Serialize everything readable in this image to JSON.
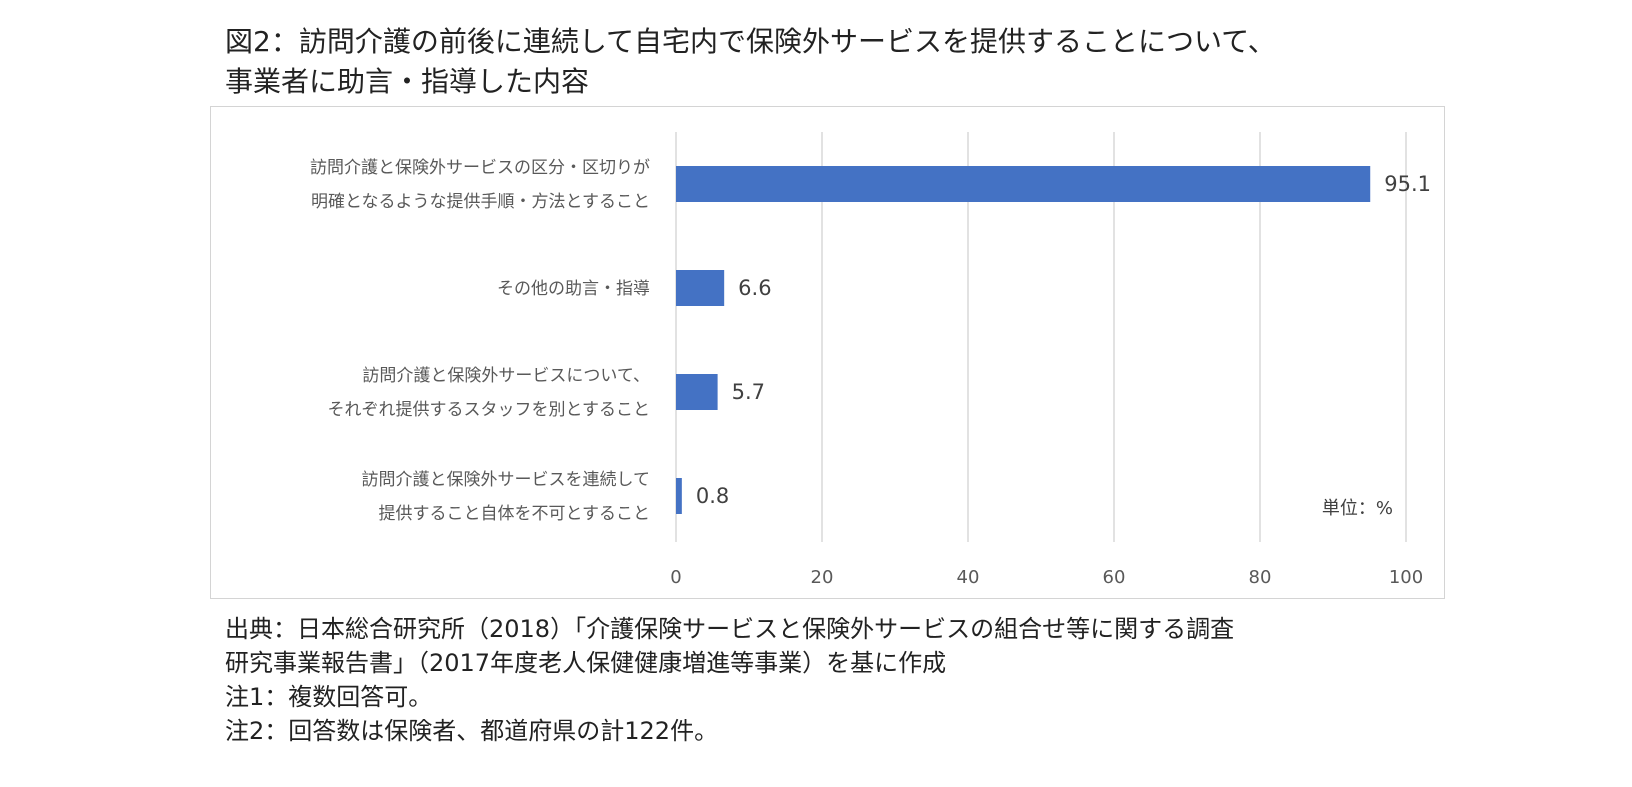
{
  "title": {
    "line1": "図2：訪問介護の前後に連続して自宅内で保険外サービスを提供することについて、",
    "line2": "事業者に助言・指導した内容"
  },
  "chart_data": {
    "type": "bar",
    "orientation": "horizontal",
    "categories": [
      [
        "訪問介護と保険外サービスの区分・区切りが",
        "明確となるような提供手順・方法とすること"
      ],
      [
        "その他の助言・指導"
      ],
      [
        "訪問介護と保険外サービスについて、",
        "それぞれ提供するスタッフを別とすること"
      ],
      [
        "訪問介護と保険外サービスを連続して",
        "提供すること自体を不可とすること"
      ]
    ],
    "values": [
      95.1,
      6.6,
      5.7,
      0.8
    ],
    "value_labels": [
      "95.1",
      "6.6",
      "5.7",
      "0.8"
    ],
    "xlim": [
      0,
      100
    ],
    "xticks": [
      0,
      20,
      40,
      60,
      80,
      100
    ],
    "unit_label": "単位：%",
    "grid": "vertical",
    "bar_color": "#4472c4"
  },
  "notes": {
    "source_line1": "出典：日本総合研究所（2018）「介護保険サービスと保険外サービスの組合せ等に関する調査",
    "source_line2": "研究事業報告書」（2017年度老人保健健康増進等事業）を基に作成",
    "note1": "注1：複数回答可。",
    "note2": "注2：回答数は保険者、都道府県の計122件。"
  }
}
